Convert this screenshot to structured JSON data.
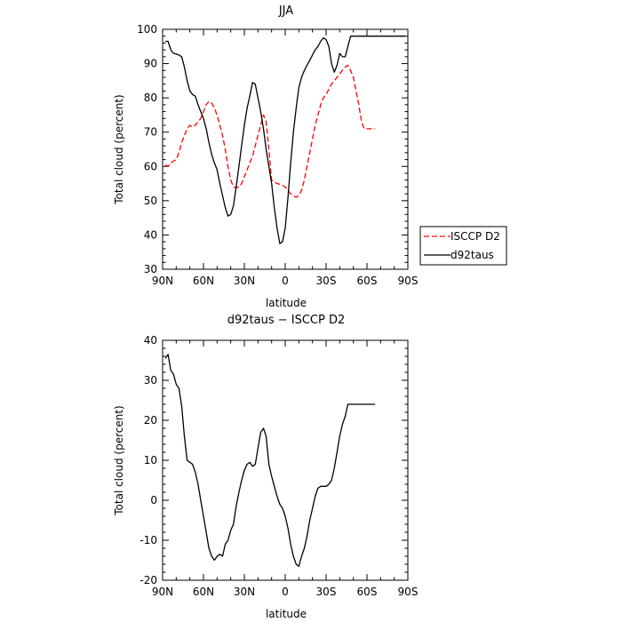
{
  "chart_data": [
    {
      "type": "line",
      "title": "JJA",
      "xlabel": "latitude",
      "ylabel": "Total cloud (percent)",
      "x_tick_labels": [
        "90N",
        "60N",
        "30N",
        "0",
        "30S",
        "60S",
        "90S"
      ],
      "x_tick_values": [
        90,
        60,
        30,
        0,
        -30,
        -60,
        -90
      ],
      "xlim": [
        90,
        -90
      ],
      "ylim": [
        30,
        100
      ],
      "y_ticks": [
        30,
        40,
        50,
        60,
        70,
        80,
        90,
        100
      ],
      "grid": false,
      "legend": "right",
      "series": [
        {
          "name": "ISCCP D2",
          "color": "#ff0000",
          "dash": true,
          "x": [
            88,
            86,
            84,
            82,
            80,
            78,
            76,
            74,
            72,
            70,
            68,
            66,
            64,
            62,
            60,
            58,
            56,
            54,
            52,
            50,
            48,
            46,
            44,
            42,
            40,
            38,
            36,
            34,
            32,
            30,
            28,
            26,
            24,
            22,
            20,
            18,
            16,
            14,
            12,
            10,
            8,
            6,
            4,
            2,
            0,
            -2,
            -4,
            -6,
            -8,
            -10,
            -12,
            -14,
            -16,
            -18,
            -20,
            -22,
            -24,
            -26,
            -28,
            -30,
            -32,
            -34,
            -36,
            -38,
            -40,
            -42,
            -44,
            -46,
            -48,
            -50,
            -52,
            -54,
            -56,
            -58,
            -60,
            -62,
            -64,
            -66
          ],
          "y": [
            60.5,
            60,
            61,
            61.5,
            62,
            64,
            67,
            69,
            71,
            72,
            71.5,
            72,
            73,
            74,
            76,
            78,
            79,
            78.5,
            77,
            75,
            72,
            69,
            65,
            60,
            56,
            54,
            53.8,
            54,
            55,
            57,
            59,
            61,
            63,
            66,
            69,
            72,
            75,
            73,
            65,
            56,
            55.5,
            55,
            54.8,
            54.5,
            54,
            53,
            52,
            51.5,
            51,
            51.5,
            53,
            56,
            60,
            64,
            68,
            72,
            75,
            78,
            80,
            81,
            82.5,
            84,
            85,
            86,
            87,
            88,
            89,
            89.5,
            88,
            86,
            82,
            78,
            73,
            71,
            71,
            71,
            71,
            71
          ]
        },
        {
          "name": "d92taus",
          "color": "#000000",
          "dash": false,
          "x": [
            88,
            86,
            84,
            82,
            80,
            78,
            76,
            74,
            72,
            70,
            68,
            66,
            64,
            62,
            60,
            58,
            56,
            54,
            52,
            50,
            48,
            46,
            44,
            42,
            40,
            38,
            36,
            34,
            32,
            30,
            28,
            26,
            24,
            22,
            20,
            18,
            16,
            14,
            12,
            10,
            8,
            6,
            4,
            2,
            0,
            -2,
            -4,
            -6,
            -8,
            -10,
            -12,
            -14,
            -16,
            -18,
            -20,
            -22,
            -24,
            -26,
            -28,
            -30,
            -32,
            -34,
            -36,
            -38,
            -40,
            -42,
            -44,
            -46,
            -48,
            -50,
            -52,
            -54,
            -56,
            -58,
            -60,
            -62,
            -64,
            -66,
            -68,
            -70,
            -72,
            -74,
            -76,
            -78,
            -80,
            -82,
            -84,
            -86,
            -88
          ],
          "y": [
            96.5,
            96.5,
            94,
            93,
            92.8,
            92.5,
            92,
            89,
            85,
            82,
            81,
            80.5,
            78,
            76,
            74,
            71,
            67,
            63.5,
            61,
            59,
            55,
            51.5,
            48,
            45.5,
            46,
            48.5,
            54,
            60,
            66,
            72,
            77,
            80.5,
            84.5,
            84,
            80,
            76,
            71,
            65,
            60,
            55,
            48,
            42,
            37.5,
            38,
            42,
            51,
            61,
            70,
            77,
            83,
            86,
            88,
            89.5,
            91,
            92.5,
            94,
            95,
            96.5,
            97.5,
            97,
            95,
            90,
            87.5,
            89.5,
            93,
            92,
            92,
            95,
            98,
            98,
            98,
            98,
            98,
            98,
            98,
            98,
            98,
            98,
            98,
            98,
            98,
            98,
            98,
            98,
            98,
            98,
            98,
            98,
            98
          ]
        }
      ]
    },
    {
      "type": "line",
      "title": "d92taus − ISCCP D2",
      "xlabel": "latitude",
      "ylabel": "Total cloud (percent)",
      "x_tick_labels": [
        "90N",
        "60N",
        "30N",
        "0",
        "30S",
        "60S",
        "90S"
      ],
      "x_tick_values": [
        90,
        60,
        30,
        0,
        -30,
        -60,
        -90
      ],
      "xlim": [
        90,
        -90
      ],
      "ylim": [
        -20,
        40
      ],
      "y_ticks": [
        -20,
        -10,
        0,
        10,
        20,
        30,
        40
      ],
      "grid": false,
      "legend": "none",
      "series": [
        {
          "color": "#000000",
          "dash": false,
          "x": [
            88,
            86,
            84,
            82,
            80,
            78,
            76,
            74,
            72,
            70,
            68,
            66,
            64,
            62,
            60,
            58,
            56,
            54,
            52,
            50,
            48,
            46,
            44,
            42,
            40,
            38,
            36,
            34,
            32,
            30,
            28,
            26,
            24,
            22,
            20,
            18,
            16,
            14,
            12,
            10,
            8,
            6,
            4,
            2,
            0,
            -2,
            -4,
            -6,
            -8,
            -10,
            -12,
            -14,
            -16,
            -18,
            -20,
            -22,
            -24,
            -26,
            -28,
            -30,
            -32,
            -34,
            -36,
            -38,
            -40,
            -42,
            -44,
            -46,
            -48,
            -50,
            -52,
            -54,
            -56,
            -58,
            -60,
            -62,
            -64,
            -66
          ],
          "y": [
            35.5,
            36.5,
            32.5,
            31.5,
            29,
            28,
            23.5,
            16,
            10,
            9.5,
            9,
            7,
            4,
            0,
            -4,
            -8,
            -12,
            -14,
            -15,
            -14,
            -13.5,
            -14,
            -11,
            -10,
            -7.5,
            -6,
            -1.5,
            2,
            5,
            7.5,
            9,
            9.5,
            8.5,
            9,
            13,
            17,
            18,
            16,
            9,
            6,
            3.5,
            1,
            -1,
            -2,
            -4,
            -7,
            -11,
            -14,
            -16,
            -16.5,
            -14,
            -12,
            -9,
            -5,
            -2,
            1,
            3,
            3.5,
            3.5,
            3.5,
            4,
            5,
            8,
            12,
            16,
            19,
            21,
            24,
            24,
            24,
            24,
            24,
            24,
            24,
            24,
            24,
            24,
            24
          ]
        }
      ]
    }
  ],
  "legend": {
    "entries": [
      {
        "label": "ISCCP D2"
      },
      {
        "label": "d92taus"
      }
    ]
  }
}
